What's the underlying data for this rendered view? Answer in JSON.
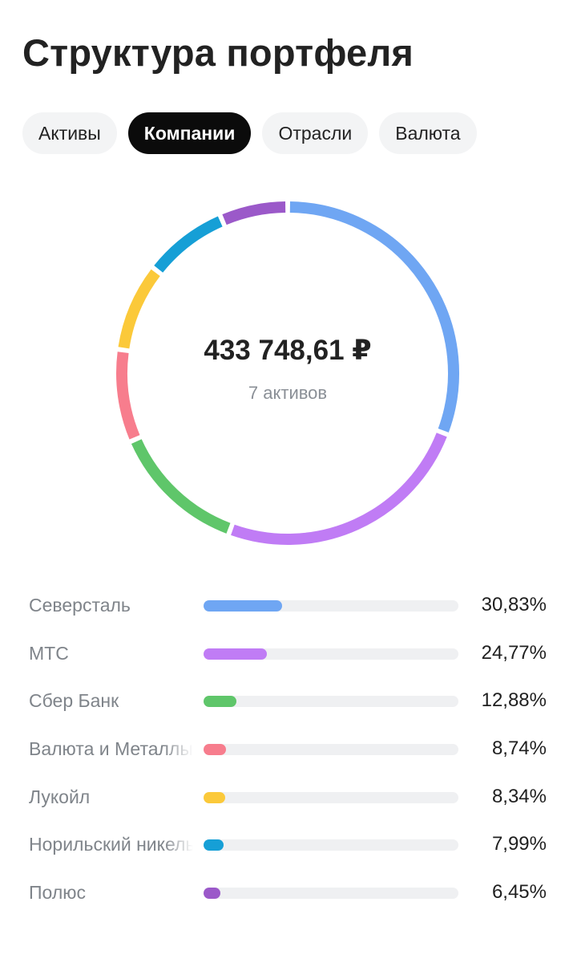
{
  "page": {
    "title": "Структура портфеля",
    "tabs": [
      {
        "label": "Активы",
        "active": false
      },
      {
        "label": "Компании",
        "active": true
      },
      {
        "label": "Отрасли",
        "active": false
      },
      {
        "label": "Валюта",
        "active": false
      }
    ],
    "total": "433 748,61 ₽",
    "count": "7 активов"
  },
  "chart_data": {
    "type": "donut",
    "categories": [
      "Северсталь",
      "МТС",
      "Сбер Банк",
      "Валюта и Металлы",
      "Лукойл",
      "Норильский никель",
      "Полюс"
    ],
    "values": [
      30.83,
      24.77,
      12.88,
      8.74,
      8.34,
      7.99,
      6.45
    ],
    "value_labels": [
      "30,83%",
      "24,77%",
      "12,88%",
      "8,74%",
      "8,34%",
      "7,99%",
      "6,45%"
    ],
    "colors": [
      "#6fa6f3",
      "#c07cf5",
      "#5fc66a",
      "#f77d8d",
      "#fbc93a",
      "#169fd6",
      "#9b59c9"
    ],
    "unit": "%"
  }
}
